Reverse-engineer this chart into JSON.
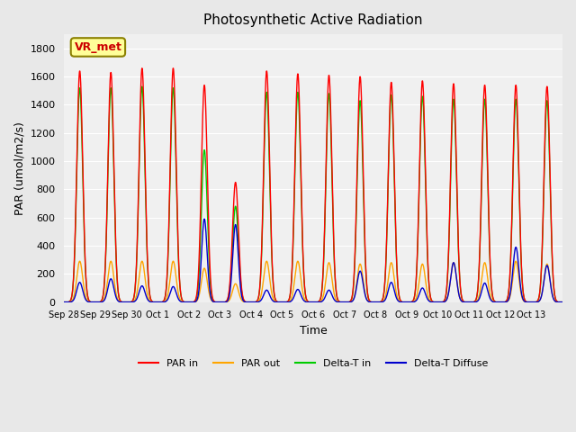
{
  "title": "Photosynthetic Active Radiation",
  "xlabel": "Time",
  "ylabel": "PAR (umol/m2/s)",
  "ylim": [
    0,
    1900
  ],
  "yticks": [
    0,
    200,
    400,
    600,
    800,
    1000,
    1200,
    1400,
    1600,
    1800
  ],
  "x_tick_labels": [
    "Sep 28",
    "Sep 29",
    "Sep 30",
    "Oct 1",
    "Oct 2",
    "Oct 3",
    "Oct 4",
    "Oct 5",
    "Oct 6",
    "Oct 7",
    "Oct 8",
    "Oct 9",
    "Oct 10",
    "Oct 11",
    "Oct 12",
    "Oct 13"
  ],
  "legend_labels": [
    "PAR in",
    "PAR out",
    "Delta-T in",
    "Delta-T Diffuse"
  ],
  "legend_colors": [
    "#ff0000",
    "#ffa500",
    "#00cc00",
    "#0000cd"
  ],
  "vr_met_box_color": "#ffff99",
  "vr_met_border_color": "#8B8000",
  "vr_met_text_color": "#cc0000",
  "background_color": "#e8e8e8",
  "plot_bg_color": "#f0f0f0",
  "grid_color": "#ffffff",
  "n_days": 16,
  "points_per_day": 144,
  "par_in_peaks": [
    1640,
    1630,
    1660,
    1660,
    1540,
    850,
    1640,
    1620,
    1610,
    1600,
    1560,
    1570,
    1550,
    1540,
    1540,
    1530
  ],
  "par_out_peaks": [
    290,
    290,
    290,
    290,
    240,
    130,
    290,
    290,
    280,
    270,
    280,
    270,
    280,
    280,
    290,
    270
  ],
  "delta_t_in_peaks": [
    1520,
    1520,
    1530,
    1520,
    1080,
    680,
    1490,
    1490,
    1480,
    1430,
    1470,
    1460,
    1440,
    1440,
    1440,
    1430
  ],
  "delta_t_diffuse_peaks": [
    140,
    165,
    115,
    110,
    590,
    550,
    85,
    90,
    85,
    220,
    140,
    100,
    280,
    135,
    390,
    260
  ],
  "line_width": 1.0
}
